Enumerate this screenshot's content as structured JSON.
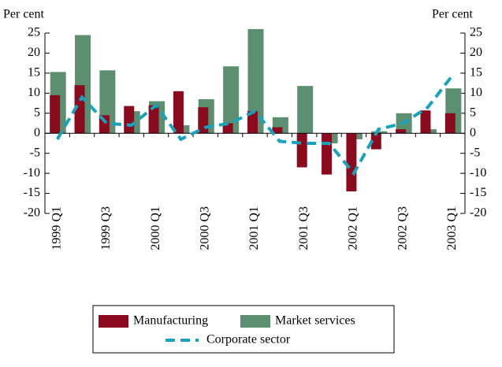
{
  "chart_data": {
    "type": "bar",
    "y_label": "Per cent",
    "y2_label": "Per cent",
    "categories": [
      "1999 Q1",
      null,
      "1999 Q3",
      null,
      "2000 Q1",
      null,
      "2000 Q3",
      null,
      "2001 Q1",
      null,
      "2001 Q3",
      null,
      "2002 Q1",
      null,
      "2002 Q3",
      null,
      "2003 Q1"
    ],
    "series": [
      {
        "name": "Manufacturing",
        "type": "bar",
        "color": "#8b0a1e",
        "values": [
          9.5,
          12,
          4.5,
          6.8,
          7,
          10.5,
          6.5,
          2.5,
          5.5,
          1.5,
          -8.5,
          -10.3,
          -14.5,
          -4,
          1,
          5.7,
          5
        ]
      },
      {
        "name": "Market services",
        "type": "bar",
        "color": "#5b8f70",
        "values": [
          15.3,
          24.5,
          15.7,
          5.5,
          8,
          2,
          8.5,
          16.7,
          26,
          4,
          11.8,
          -2.5,
          -1.5,
          0.5,
          5,
          1,
          11.2
        ]
      },
      {
        "name": "Corporate sector",
        "type": "line",
        "color": "#17a3bd",
        "values": [
          -1.5,
          9,
          2.5,
          2,
          7,
          -1.5,
          1.5,
          2.5,
          5.5,
          -2,
          -2.5,
          -2.5,
          -10,
          1,
          2.5,
          6.5,
          14.5
        ]
      }
    ],
    "ylim": [
      -20,
      25
    ],
    "yticks": [
      -20,
      -15,
      -10,
      -5,
      0,
      5,
      10,
      15,
      20,
      25
    ],
    "y2lim": [
      -20,
      25
    ],
    "y2ticks": [
      -20,
      -15,
      -10,
      -5,
      0,
      5,
      10,
      15,
      20,
      25
    ],
    "grid": false
  }
}
